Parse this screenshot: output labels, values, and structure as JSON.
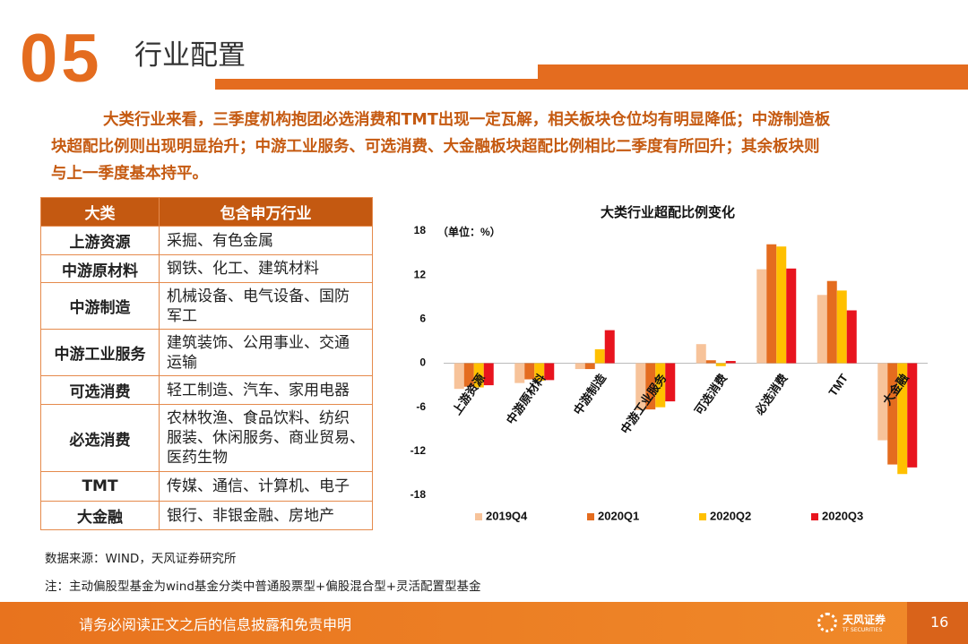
{
  "header": {
    "number": "05",
    "title": "行业配置"
  },
  "paragraph": [
    "大类行业来看，三季度机构抱团必选消费和TMT出现一定瓦解，相关板块仓位均有明显降低；中游制造板",
    "块超配比例则出现明显抬升；中游工业服务、可选消费、大金融板块超配比例相比二季度有所回升；其余板块则",
    "与上一季度基本持平。"
  ],
  "table": {
    "columns": [
      "大类",
      "包含申万行业"
    ],
    "rows": [
      [
        "上游资源",
        [
          "采掘、有色金属"
        ]
      ],
      [
        "中游原材料",
        [
          "钢铁、化工、建筑材料"
        ]
      ],
      [
        "中游制造",
        [
          "机械设备、电气设备、国防",
          "军工"
        ]
      ],
      [
        "中游工业服务",
        [
          "建筑装饰、公用事业、交通",
          "运输"
        ]
      ],
      [
        "可选消费",
        [
          "轻工制造、汽车、家用电器"
        ]
      ],
      [
        "必选消费",
        [
          "农林牧渔、食品饮料、纺织",
          "服装、休闲服务、商业贸易、",
          "医药生物"
        ]
      ],
      [
        "TMT",
        [
          "传媒、通信、计算机、电子"
        ]
      ],
      [
        "大金融",
        [
          "银行、非银金融、房地产"
        ]
      ]
    ]
  },
  "chart_data": {
    "type": "bar",
    "title": "大类行业超配比例变化",
    "unit": "（单位：%）",
    "categories": [
      "上游资源",
      "中游原材料",
      "中游制造",
      "中游工业服务",
      "可选消费",
      "必选消费",
      "TMT",
      "大金融"
    ],
    "series": [
      {
        "name": "2019Q4",
        "color": "#f7c39a",
        "values": [
          -3.5,
          -2.7,
          -0.8,
          -6.4,
          2.6,
          12.8,
          9.3,
          -10.5
        ]
      },
      {
        "name": "2020Q1",
        "color": "#e46c1f",
        "values": [
          -3.2,
          -2.2,
          -0.8,
          -6.3,
          0.4,
          16.2,
          11.2,
          -13.8
        ]
      },
      {
        "name": "2020Q2",
        "color": "#ffc000",
        "values": [
          -3.3,
          -2.4,
          1.9,
          -6.0,
          -0.4,
          15.9,
          9.9,
          -15.1
        ]
      },
      {
        "name": "2020Q3",
        "color": "#e8141e",
        "values": [
          -3.0,
          -2.3,
          4.5,
          -5.2,
          0.3,
          12.9,
          7.2,
          -14.2
        ]
      }
    ],
    "ylim": [
      -18,
      18
    ],
    "yticks": [
      -18,
      -12,
      -6,
      0,
      6,
      12,
      18
    ]
  },
  "notes": [
    "数据来源：WIND，天风证券研究所",
    "注：主动偏股型基金为wind基金分类中普通股票型+偏股混合型+灵活配置型基金"
  ],
  "footer": {
    "disclaimer": "请务必阅读正文之后的信息披露和免责申明",
    "logo": "天风证券",
    "logo_sub": "TF SECURITIES",
    "page": "16"
  }
}
